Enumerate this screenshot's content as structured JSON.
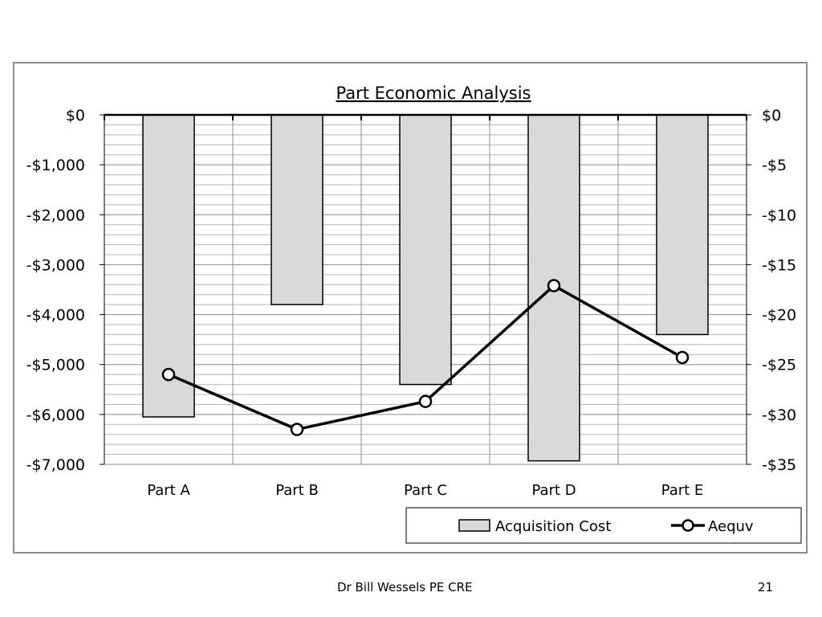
{
  "chart_data": {
    "type": "bar",
    "title": "Part Economic Analysis",
    "categories": [
      "Part A",
      "Part B",
      "Part C",
      "Part D",
      "Part E"
    ],
    "series": [
      {
        "name": "Acquisition Cost",
        "kind": "bar",
        "axis": "left",
        "values": [
          -6050,
          -3800,
          -5400,
          -6930,
          -4400
        ]
      },
      {
        "name": "Aequv",
        "kind": "line",
        "axis": "right",
        "values": [
          -26.0,
          -31.5,
          -28.7,
          -17.1,
          -24.3
        ]
      }
    ],
    "ylim": [
      -7000,
      0
    ],
    "y2lim": [
      -35,
      0
    ],
    "y_ticks": [
      "$0",
      "-$1,000",
      "-$2,000",
      "-$3,000",
      "-$4,000",
      "-$5,000",
      "-$6,000",
      "-$7,000"
    ],
    "y2_ticks": [
      "$0",
      "-$5",
      "-$10",
      "-$15",
      "-$20",
      "-$25",
      "-$30",
      "-$35"
    ],
    "grid": true,
    "legend_position": "bottom-right",
    "colors": {
      "bar_fill": "#d9d9d9",
      "bar_stroke": "#000000",
      "line": "#000000",
      "marker_fill": "#ffffff",
      "grid": "#9e9e9e"
    }
  },
  "footer": {
    "author": "Dr Bill Wessels PE CRE",
    "page_number": "21"
  }
}
